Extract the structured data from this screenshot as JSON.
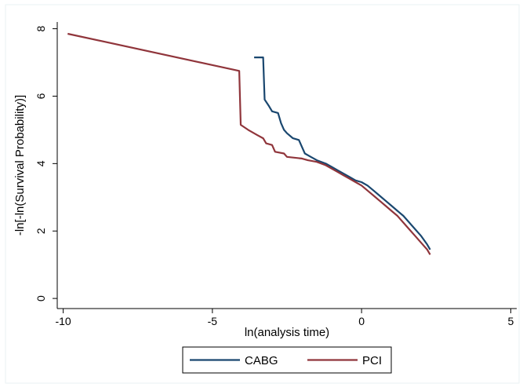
{
  "chart_data": {
    "type": "line",
    "xlabel": "ln(analysis time)",
    "ylabel": "-ln[-ln(Survival Probability)]",
    "xlim": [
      -10.2,
      5.2
    ],
    "ylim": [
      -0.3,
      8.2
    ],
    "x_ticks": [
      -10,
      -5,
      0,
      5
    ],
    "y_ticks": [
      0,
      2,
      4,
      6,
      8
    ],
    "x_tick_labels": [
      "-10",
      "-5",
      "0",
      "5"
    ],
    "y_tick_labels": [
      "0",
      "2",
      "4",
      "6",
      "8"
    ],
    "grid": false,
    "legend_position": "bottom-center",
    "series": [
      {
        "name": "CABG",
        "color": "#1a476f",
        "points": [
          [
            -3.6,
            7.15
          ],
          [
            -3.3,
            7.15
          ],
          [
            -3.25,
            5.9
          ],
          [
            -3.1,
            5.7
          ],
          [
            -3.0,
            5.55
          ],
          [
            -2.8,
            5.5
          ],
          [
            -2.7,
            5.2
          ],
          [
            -2.6,
            5.0
          ],
          [
            -2.5,
            4.9
          ],
          [
            -2.3,
            4.75
          ],
          [
            -2.1,
            4.7
          ],
          [
            -2.0,
            4.5
          ],
          [
            -1.9,
            4.3
          ],
          [
            -1.7,
            4.2
          ],
          [
            -1.5,
            4.1
          ],
          [
            -1.2,
            4.0
          ],
          [
            -1.0,
            3.9
          ],
          [
            -0.8,
            3.8
          ],
          [
            -0.6,
            3.7
          ],
          [
            -0.4,
            3.6
          ],
          [
            -0.2,
            3.5
          ],
          [
            0.0,
            3.45
          ],
          [
            0.2,
            3.35
          ],
          [
            0.4,
            3.2
          ],
          [
            0.6,
            3.05
          ],
          [
            0.8,
            2.9
          ],
          [
            1.0,
            2.75
          ],
          [
            1.2,
            2.6
          ],
          [
            1.4,
            2.45
          ],
          [
            1.6,
            2.25
          ],
          [
            1.8,
            2.05
          ],
          [
            2.0,
            1.85
          ],
          [
            2.2,
            1.6
          ],
          [
            2.3,
            1.45
          ]
        ]
      },
      {
        "name": "PCI",
        "color": "#90353b",
        "points": [
          [
            -9.85,
            7.85
          ],
          [
            -4.1,
            6.75
          ],
          [
            -4.05,
            5.15
          ],
          [
            -3.8,
            5.0
          ],
          [
            -3.5,
            4.85
          ],
          [
            -3.3,
            4.75
          ],
          [
            -3.2,
            4.6
          ],
          [
            -3.0,
            4.55
          ],
          [
            -2.9,
            4.35
          ],
          [
            -2.6,
            4.3
          ],
          [
            -2.5,
            4.2
          ],
          [
            -2.0,
            4.15
          ],
          [
            -1.8,
            4.1
          ],
          [
            -1.5,
            4.05
          ],
          [
            -1.2,
            3.95
          ],
          [
            -1.0,
            3.85
          ],
          [
            -0.8,
            3.75
          ],
          [
            -0.6,
            3.65
          ],
          [
            -0.4,
            3.55
          ],
          [
            -0.2,
            3.45
          ],
          [
            0.0,
            3.35
          ],
          [
            0.2,
            3.2
          ],
          [
            0.4,
            3.05
          ],
          [
            0.6,
            2.9
          ],
          [
            0.8,
            2.75
          ],
          [
            1.0,
            2.6
          ],
          [
            1.2,
            2.45
          ],
          [
            1.4,
            2.25
          ],
          [
            1.6,
            2.05
          ],
          [
            1.8,
            1.85
          ],
          [
            2.0,
            1.65
          ],
          [
            2.2,
            1.45
          ],
          [
            2.3,
            1.3
          ]
        ]
      }
    ]
  }
}
